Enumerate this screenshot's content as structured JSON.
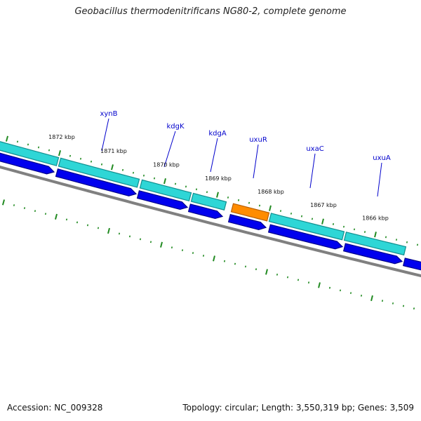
{
  "title": "Geobacillus thermodenitrificans NG80-2, complete genome",
  "footer": {
    "accession": "Accession: NC_009328",
    "summary": "Topology: circular; Length: 3,550,319 bp; Genes: 3,509"
  },
  "tick_labels": [
    "1872 kbp",
    "1871 kbp",
    "1870 kbp",
    "1869 kbp",
    "1868 kbp",
    "1867 kbp",
    "1866 kbp"
  ],
  "gene_labels": [
    "xynB",
    "kdgK",
    "kdgA",
    "uxuR",
    "uxaC",
    "uxuA"
  ],
  "colors": {
    "cds_cyan": "#2ed6d6",
    "cds_cyan_edge": "#108f8f",
    "orange_feature": "#ff8c00",
    "blue_feature": "#0000ee",
    "backbone": "#808080",
    "ticks": "#228b22",
    "gene_label": "#0000cc"
  }
}
